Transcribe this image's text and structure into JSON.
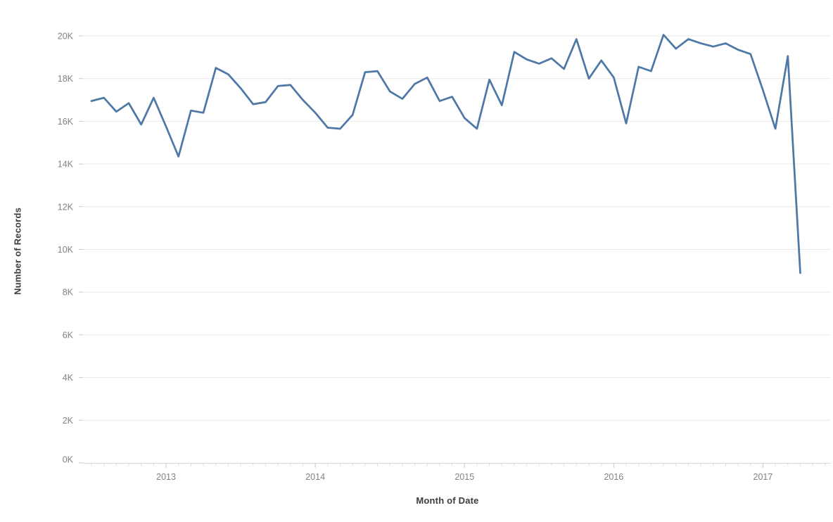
{
  "chart_data": {
    "type": "line",
    "title": "",
    "xlabel": "Month of Date",
    "ylabel": "Number of Records",
    "legend": "none",
    "grid": "horizontal",
    "ylim": [
      0,
      21000
    ],
    "y_ticks": [
      0,
      2000,
      4000,
      6000,
      8000,
      10000,
      12000,
      14000,
      16000,
      18000,
      20000
    ],
    "y_tick_labels": [
      "0K",
      "2K",
      "4K",
      "6K",
      "8K",
      "10K",
      "12K",
      "14K",
      "16K",
      "18K",
      "20K"
    ],
    "x_tick_labels": [
      "2013",
      "2014",
      "2015",
      "2016",
      "2017"
    ],
    "x": [
      "Jul 2012",
      "Aug 2012",
      "Sep 2012",
      "Oct 2012",
      "Nov 2012",
      "Dec 2012",
      "Jan 2013",
      "Feb 2013",
      "Mar 2013",
      "Apr 2013",
      "May 2013",
      "Jun 2013",
      "Jul 2013",
      "Aug 2013",
      "Sep 2013",
      "Oct 2013",
      "Nov 2013",
      "Dec 2013",
      "Jan 2014",
      "Feb 2014",
      "Mar 2014",
      "Apr 2014",
      "May 2014",
      "Jun 2014",
      "Jul 2014",
      "Aug 2014",
      "Sep 2014",
      "Oct 2014",
      "Nov 2014",
      "Dec 2014",
      "Jan 2015",
      "Feb 2015",
      "Mar 2015",
      "Apr 2015",
      "May 2015",
      "Jun 2015",
      "Jul 2015",
      "Aug 2015",
      "Sep 2015",
      "Oct 2015",
      "Nov 2015",
      "Dec 2015",
      "Jan 2016",
      "Feb 2016",
      "Mar 2016",
      "Apr 2016",
      "May 2016",
      "Jun 2016",
      "Jul 2016",
      "Aug 2016",
      "Sep 2016",
      "Oct 2016",
      "Nov 2016",
      "Dec 2016",
      "Jan 2017",
      "Feb 2017",
      "Mar 2017",
      "Apr 2017"
    ],
    "values": [
      16950,
      17100,
      16450,
      16850,
      15850,
      17100,
      15750,
      14350,
      16500,
      16400,
      18500,
      18200,
      17550,
      16800,
      16900,
      17650,
      17700,
      17000,
      16400,
      15700,
      15650,
      16300,
      18300,
      18350,
      17400,
      17050,
      17750,
      18050,
      16950,
      17150,
      16150,
      15650,
      17950,
      16750,
      19250,
      18900,
      18700,
      18950,
      18450,
      19850,
      18000,
      18850,
      18050,
      15900,
      18550,
      18350,
      20050,
      19400,
      19850,
      19650,
      19500,
      19650,
      19350,
      19150,
      17450,
      15650,
      19050,
      8900
    ],
    "colors": {
      "line": "#4e79a7",
      "gridline": "#e9e9e9",
      "axis_line": "#d8d8d8",
      "tick_mark": "#c9c9c9",
      "minor_tick_mark": "#dddddd",
      "tick_text": "#828282",
      "axis_title_text": "#3c3c3c",
      "background": "#ffffff"
    }
  }
}
